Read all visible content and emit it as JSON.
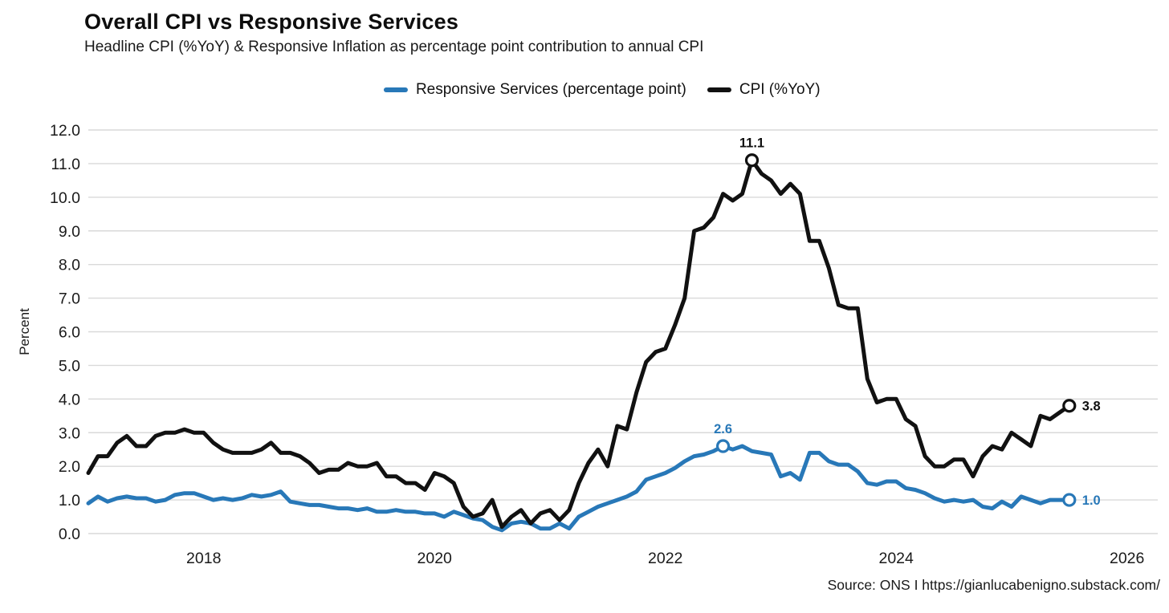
{
  "page": {
    "title": "Overall CPI vs Responsive Services",
    "subtitle": "Headline CPI (%YoY) & Responsive Inflation as percentage point contribution to annual CPI",
    "source": "Source: ONS I  https://gianlucabenigno.substack.com/"
  },
  "legend": {
    "items": [
      {
        "label": "Responsive Services (percentage point)",
        "color": "#2878b8"
      },
      {
        "label": "CPI (%YoY)",
        "color": "#111111"
      }
    ]
  },
  "colors": {
    "services_blue": "#2878b8",
    "cpi_black": "#111111",
    "gridline": "#d9d9d9",
    "tick_text": "#1a1a1a",
    "marker_fill": "#ffffff"
  },
  "chart_data": {
    "type": "line",
    "title": "Overall CPI vs Responsive Services",
    "subtitle": "Headline CPI (%YoY) & Responsive Inflation as percentage point contribution to annual CPI",
    "ylabel": "Percent",
    "xlabel": "",
    "grid": true,
    "legend_position": "top",
    "ylim": [
      0,
      12
    ],
    "ytick_step": 1.0,
    "ytick_labels": [
      "0.0",
      "1.0",
      "2.0",
      "3.0",
      "4.0",
      "5.0",
      "6.0",
      "7.0",
      "8.0",
      "9.0",
      "10.0",
      "11.0",
      "12.0"
    ],
    "x_start_month": "2017-01",
    "x_end_month": "2025-07",
    "x_domain_months": [
      0,
      111.2
    ],
    "x_ticks": [
      {
        "label": "2018",
        "month_index": 12
      },
      {
        "label": "2020",
        "month_index": 36
      },
      {
        "label": "2022",
        "month_index": 60
      },
      {
        "label": "2024",
        "month_index": 84
      },
      {
        "label": "2026",
        "month_index": 108
      }
    ],
    "series": [
      {
        "name": "Responsive Services (percentage point)",
        "color": "#2878b8",
        "values": [
          0.9,
          1.1,
          0.95,
          1.05,
          1.1,
          1.05,
          1.05,
          0.95,
          1.0,
          1.15,
          1.2,
          1.2,
          1.1,
          1.0,
          1.05,
          1.0,
          1.05,
          1.15,
          1.1,
          1.15,
          1.25,
          0.95,
          0.9,
          0.85,
          0.85,
          0.8,
          0.75,
          0.75,
          0.7,
          0.75,
          0.65,
          0.65,
          0.7,
          0.65,
          0.65,
          0.6,
          0.6,
          0.5,
          0.65,
          0.55,
          0.45,
          0.4,
          0.2,
          0.1,
          0.3,
          0.35,
          0.3,
          0.15,
          0.15,
          0.3,
          0.15,
          0.5,
          0.65,
          0.8,
          0.9,
          1.0,
          1.1,
          1.25,
          1.6,
          1.7,
          1.8,
          1.95,
          2.15,
          2.3,
          2.35,
          2.45,
          2.6,
          2.5,
          2.6,
          2.45,
          2.4,
          2.35,
          1.7,
          1.8,
          1.6,
          2.4,
          2.4,
          2.15,
          2.05,
          2.05,
          1.85,
          1.5,
          1.45,
          1.55,
          1.55,
          1.35,
          1.3,
          1.2,
          1.05,
          0.95,
          1.0,
          0.95,
          1.0,
          0.8,
          0.75,
          0.95,
          0.8,
          1.1,
          1.0,
          0.9,
          1.0,
          1.0,
          1.0
        ]
      },
      {
        "name": "CPI (%YoY)",
        "color": "#111111",
        "values": [
          1.8,
          2.3,
          2.3,
          2.7,
          2.9,
          2.6,
          2.6,
          2.9,
          3.0,
          3.0,
          3.1,
          3.0,
          3.0,
          2.7,
          2.5,
          2.4,
          2.4,
          2.4,
          2.5,
          2.7,
          2.4,
          2.4,
          2.3,
          2.1,
          1.8,
          1.9,
          1.9,
          2.1,
          2.0,
          2.0,
          2.1,
          1.7,
          1.7,
          1.5,
          1.5,
          1.3,
          1.8,
          1.7,
          1.5,
          0.8,
          0.5,
          0.6,
          1.0,
          0.2,
          0.5,
          0.7,
          0.3,
          0.6,
          0.7,
          0.4,
          0.7,
          1.5,
          2.1,
          2.5,
          2.0,
          3.2,
          3.1,
          4.2,
          5.1,
          5.4,
          5.5,
          6.2,
          7.0,
          9.0,
          9.1,
          9.4,
          10.1,
          9.9,
          10.1,
          11.1,
          10.7,
          10.5,
          10.1,
          10.4,
          10.1,
          8.7,
          8.7,
          7.9,
          6.8,
          6.7,
          6.7,
          4.6,
          3.9,
          4.0,
          4.0,
          3.4,
          3.2,
          2.3,
          2.0,
          2.0,
          2.2,
          2.2,
          1.7,
          2.3,
          2.6,
          2.5,
          3.0,
          2.8,
          2.6,
          3.5,
          3.4,
          3.6,
          3.8
        ]
      }
    ],
    "annotations": [
      {
        "series": 1,
        "month_index": 69,
        "label": "11.1",
        "placement": "above"
      },
      {
        "series": 0,
        "month_index": 66,
        "label": "2.6",
        "placement": "above"
      },
      {
        "series": 1,
        "month_index": 102,
        "label": "3.8",
        "placement": "right"
      },
      {
        "series": 0,
        "month_index": 102,
        "label": "1.0",
        "placement": "right"
      }
    ]
  }
}
